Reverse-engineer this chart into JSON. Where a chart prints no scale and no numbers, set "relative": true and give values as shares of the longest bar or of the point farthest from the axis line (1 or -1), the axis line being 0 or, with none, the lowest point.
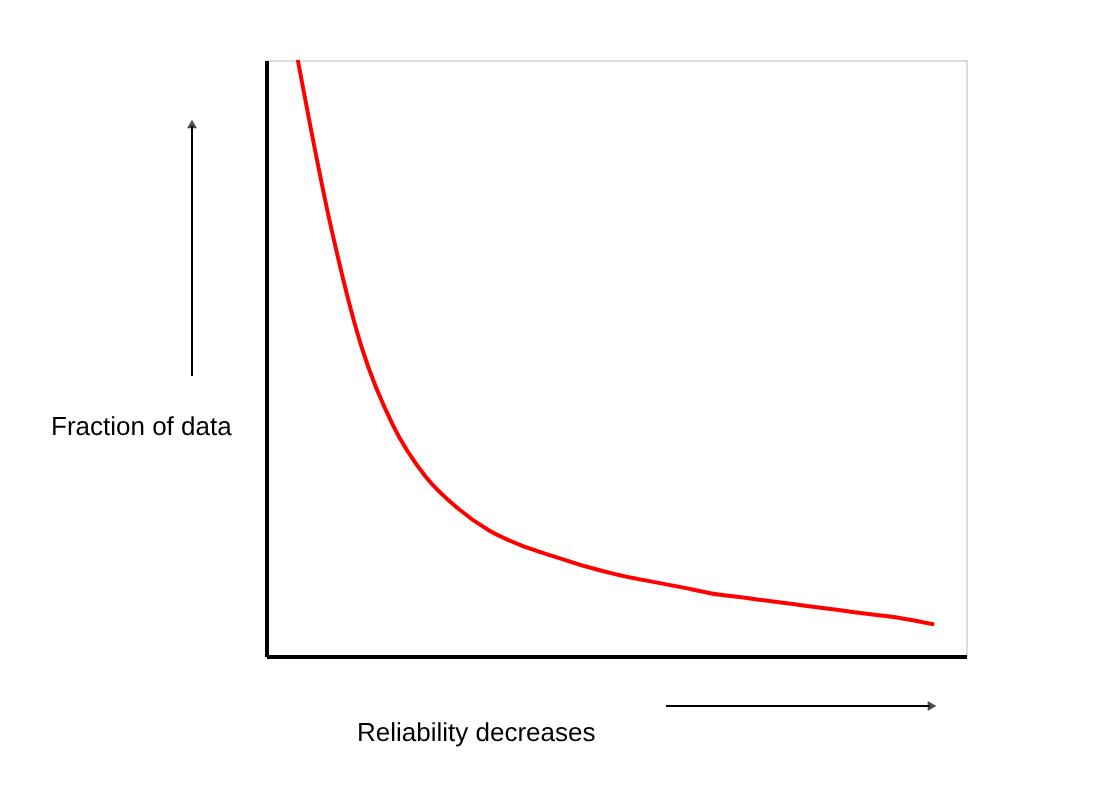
{
  "chart_data": {
    "type": "line",
    "relative": true,
    "xlabel": "Reliability decreases",
    "ylabel": "Fraction of data",
    "categories": [
      null,
      null,
      null,
      null,
      null,
      null,
      null,
      null,
      null,
      null,
      null,
      null,
      null,
      null,
      null,
      null,
      null,
      null,
      null,
      null,
      null
    ],
    "series": [
      {
        "color": "#ff0000",
        "values": [
          1.0,
          0.73,
          0.519,
          0.386,
          0.302,
          0.249,
          0.211,
          0.186,
          0.168,
          0.151,
          0.137,
          0.126,
          0.116,
          0.105,
          0.098,
          0.091,
          0.084,
          0.077,
          0.07,
          0.063,
          0.053
        ]
      }
    ],
    "grid": false,
    "marker": "none",
    "line_style": "solid"
  }
}
